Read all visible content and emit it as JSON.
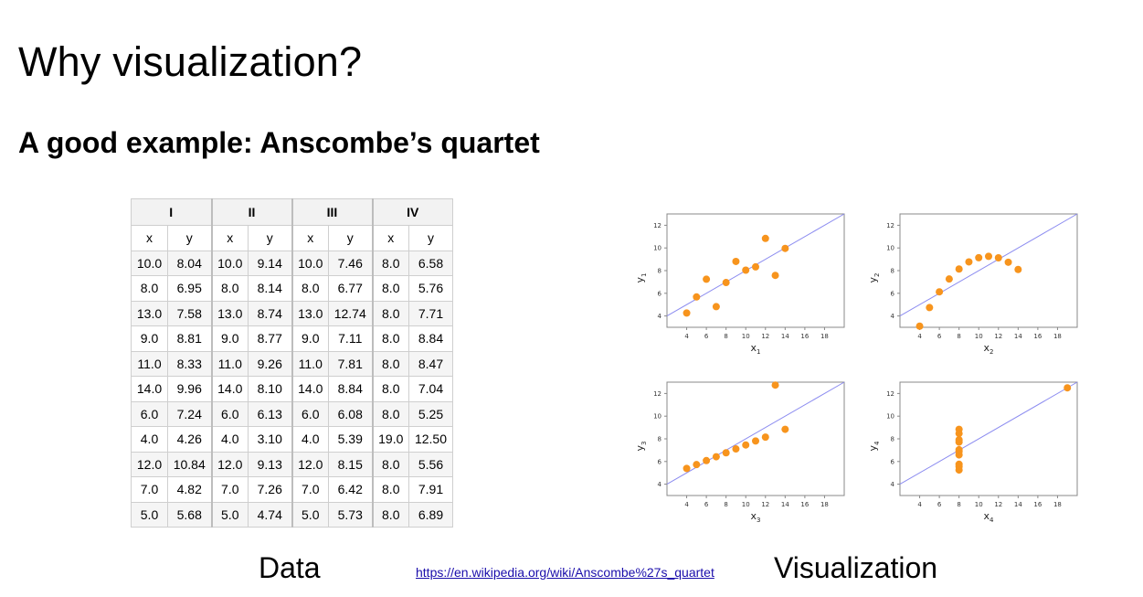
{
  "slide": {
    "title": "Why visualization?",
    "subtitle": "A good example: Anscombe’s quartet",
    "data_label": "Data",
    "visualization_label": "Visualization",
    "source_link": "https://en.wikipedia.org/wiki/Anscombe%27s_quartet"
  },
  "table": {
    "groups": [
      "I",
      "II",
      "III",
      "IV"
    ],
    "subheaders": [
      "x",
      "y",
      "x",
      "y",
      "x",
      "y",
      "x",
      "y"
    ],
    "rows": [
      [
        "10.0",
        "8.04",
        "10.0",
        "9.14",
        "10.0",
        "7.46",
        "8.0",
        "6.58"
      ],
      [
        "8.0",
        "6.95",
        "8.0",
        "8.14",
        "8.0",
        "6.77",
        "8.0",
        "5.76"
      ],
      [
        "13.0",
        "7.58",
        "13.0",
        "8.74",
        "13.0",
        "12.74",
        "8.0",
        "7.71"
      ],
      [
        "9.0",
        "8.81",
        "9.0",
        "8.77",
        "9.0",
        "7.11",
        "8.0",
        "8.84"
      ],
      [
        "11.0",
        "8.33",
        "11.0",
        "9.26",
        "11.0",
        "7.81",
        "8.0",
        "8.47"
      ],
      [
        "14.0",
        "9.96",
        "14.0",
        "8.10",
        "14.0",
        "8.84",
        "8.0",
        "7.04"
      ],
      [
        "6.0",
        "7.24",
        "6.0",
        "6.13",
        "6.0",
        "6.08",
        "8.0",
        "5.25"
      ],
      [
        "4.0",
        "4.26",
        "4.0",
        "3.10",
        "4.0",
        "5.39",
        "19.0",
        "12.50"
      ],
      [
        "12.0",
        "10.84",
        "12.0",
        "9.13",
        "12.0",
        "8.15",
        "8.0",
        "5.56"
      ],
      [
        "7.0",
        "4.82",
        "7.0",
        "7.26",
        "7.0",
        "6.42",
        "8.0",
        "7.91"
      ],
      [
        "5.0",
        "5.68",
        "5.0",
        "4.74",
        "5.0",
        "5.73",
        "8.0",
        "6.89"
      ]
    ]
  },
  "colors": {
    "point": "#f7941d",
    "fit_line": "#8c8cf0",
    "axis": "#888888"
  },
  "chart_data": [
    {
      "type": "scatter",
      "xlabel": "x",
      "xlabel_sub": "1",
      "ylabel": "y",
      "ylabel_sub": "1",
      "xlim": [
        2,
        20
      ],
      "ylim": [
        3,
        13
      ],
      "xticks": [
        4,
        6,
        8,
        10,
        12,
        14,
        16,
        18
      ],
      "yticks": [
        4,
        6,
        8,
        10,
        12
      ],
      "x": [
        10,
        8,
        13,
        9,
        11,
        14,
        6,
        4,
        12,
        7,
        5
      ],
      "y": [
        8.04,
        6.95,
        7.58,
        8.81,
        8.33,
        9.96,
        7.24,
        4.26,
        10.84,
        4.82,
        5.68
      ],
      "fit": {
        "intercept": 3.0,
        "slope": 0.5
      }
    },
    {
      "type": "scatter",
      "xlabel": "x",
      "xlabel_sub": "2",
      "ylabel": "y",
      "ylabel_sub": "2",
      "xlim": [
        2,
        20
      ],
      "ylim": [
        3,
        13
      ],
      "xticks": [
        4,
        6,
        8,
        10,
        12,
        14,
        16,
        18
      ],
      "yticks": [
        4,
        6,
        8,
        10,
        12
      ],
      "x": [
        10,
        8,
        13,
        9,
        11,
        14,
        6,
        4,
        12,
        7,
        5
      ],
      "y": [
        9.14,
        8.14,
        8.74,
        8.77,
        9.26,
        8.1,
        6.13,
        3.1,
        9.13,
        7.26,
        4.74
      ],
      "fit": {
        "intercept": 3.0,
        "slope": 0.5
      }
    },
    {
      "type": "scatter",
      "xlabel": "x",
      "xlabel_sub": "3",
      "ylabel": "y",
      "ylabel_sub": "3",
      "xlim": [
        2,
        20
      ],
      "ylim": [
        3,
        13
      ],
      "xticks": [
        4,
        6,
        8,
        10,
        12,
        14,
        16,
        18
      ],
      "yticks": [
        4,
        6,
        8,
        10,
        12
      ],
      "x": [
        10,
        8,
        13,
        9,
        11,
        14,
        6,
        4,
        12,
        7,
        5
      ],
      "y": [
        7.46,
        6.77,
        12.74,
        7.11,
        7.81,
        8.84,
        6.08,
        5.39,
        8.15,
        6.42,
        5.73
      ],
      "fit": {
        "intercept": 3.0,
        "slope": 0.5
      }
    },
    {
      "type": "scatter",
      "xlabel": "x",
      "xlabel_sub": "4",
      "ylabel": "y",
      "ylabel_sub": "4",
      "xlim": [
        2,
        20
      ],
      "ylim": [
        3,
        13
      ],
      "xticks": [
        4,
        6,
        8,
        10,
        12,
        14,
        16,
        18
      ],
      "yticks": [
        4,
        6,
        8,
        10,
        12
      ],
      "x": [
        8,
        8,
        8,
        8,
        8,
        8,
        8,
        19,
        8,
        8,
        8
      ],
      "y": [
        6.58,
        5.76,
        7.71,
        8.84,
        8.47,
        7.04,
        5.25,
        12.5,
        5.56,
        7.91,
        6.89
      ],
      "fit": {
        "intercept": 3.0,
        "slope": 0.5
      }
    }
  ]
}
